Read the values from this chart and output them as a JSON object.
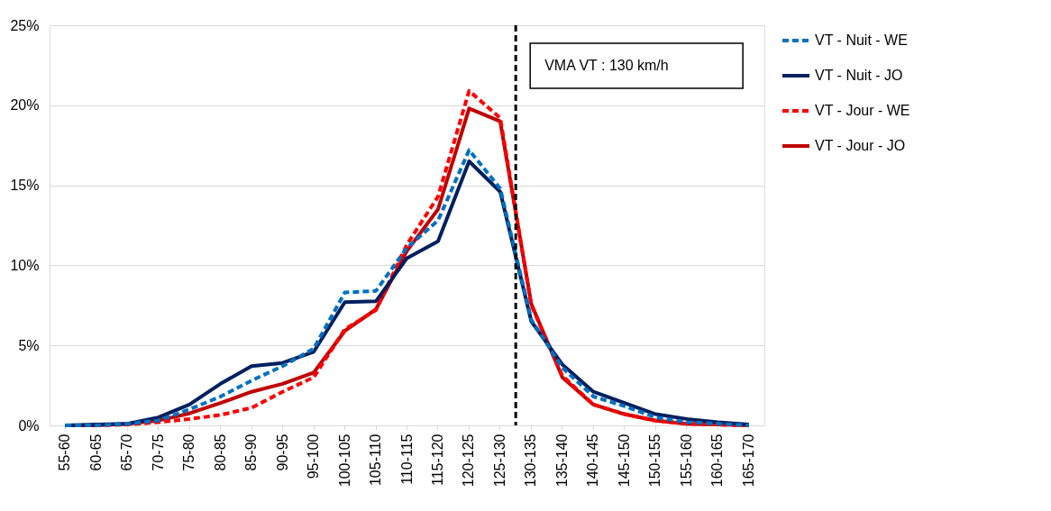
{
  "chart_data": {
    "type": "line",
    "categories": [
      "55-60",
      "60-65",
      "65-70",
      "70-75",
      "75-80",
      "80-85",
      "85-90",
      "90-95",
      "95-100",
      "100-105",
      "105-110",
      "110-115",
      "115-120",
      "120-125",
      "125-130",
      "130-135",
      "135-140",
      "140-145",
      "145-150",
      "150-155",
      "155-160",
      "160-165",
      "165-170"
    ],
    "ylim": [
      0,
      25
    ],
    "yticks": [
      {
        "value": 0,
        "label": "0%"
      },
      {
        "value": 5,
        "label": "5%"
      },
      {
        "value": 10,
        "label": "10%"
      },
      {
        "value": 15,
        "label": "15%"
      },
      {
        "value": 20,
        "label": "20%"
      },
      {
        "value": 25,
        "label": "25%"
      }
    ],
    "grid": "y",
    "legend": "right",
    "marker": "none",
    "series": [
      {
        "name": "VT - Nuit - WE",
        "color": "#0070c0",
        "line_style": "dashed",
        "values": [
          0,
          0,
          0.1,
          0.3,
          1.0,
          1.8,
          2.8,
          3.7,
          4.8,
          8.3,
          8.4,
          11.1,
          12.8,
          17.2,
          14.8,
          6.6,
          3.6,
          1.8,
          1.2,
          0.5,
          0.2,
          0.1,
          0
        ]
      },
      {
        "name": "VT - Nuit - JO",
        "color": "#002060",
        "line_style": "solid",
        "values": [
          0,
          0.05,
          0.1,
          0.5,
          1.3,
          2.6,
          3.7,
          3.9,
          4.6,
          7.7,
          7.75,
          10.45,
          11.5,
          16.5,
          14.6,
          6.5,
          3.8,
          2.1,
          1.4,
          0.7,
          0.4,
          0.2,
          0.05
        ]
      },
      {
        "name": "VT - Jour - WE",
        "color": "#ff0000",
        "line_style": "dashed",
        "values": [
          0,
          0,
          0.05,
          0.2,
          0.4,
          0.65,
          1.1,
          2.1,
          3.0,
          6.0,
          7.2,
          11.3,
          14.3,
          20.9,
          19.2,
          7.5,
          3.1,
          1.3,
          0.7,
          0.3,
          0.1,
          0.05,
          0
        ]
      },
      {
        "name": "VT - Jour - JO",
        "color": "#c00000",
        "line_style": "solid",
        "values": [
          0,
          0,
          0.1,
          0.3,
          0.75,
          1.4,
          2.1,
          2.6,
          3.3,
          5.9,
          7.25,
          10.9,
          13.5,
          19.8,
          19.0,
          7.6,
          3.0,
          1.3,
          0.7,
          0.3,
          0.1,
          0.05,
          0
        ]
      }
    ],
    "ref_lines": [
      {
        "axis": "x",
        "value": "130-135",
        "label": "VMA VT : 130 km/h",
        "color": "#000000",
        "line_style": "dashed"
      }
    ]
  }
}
